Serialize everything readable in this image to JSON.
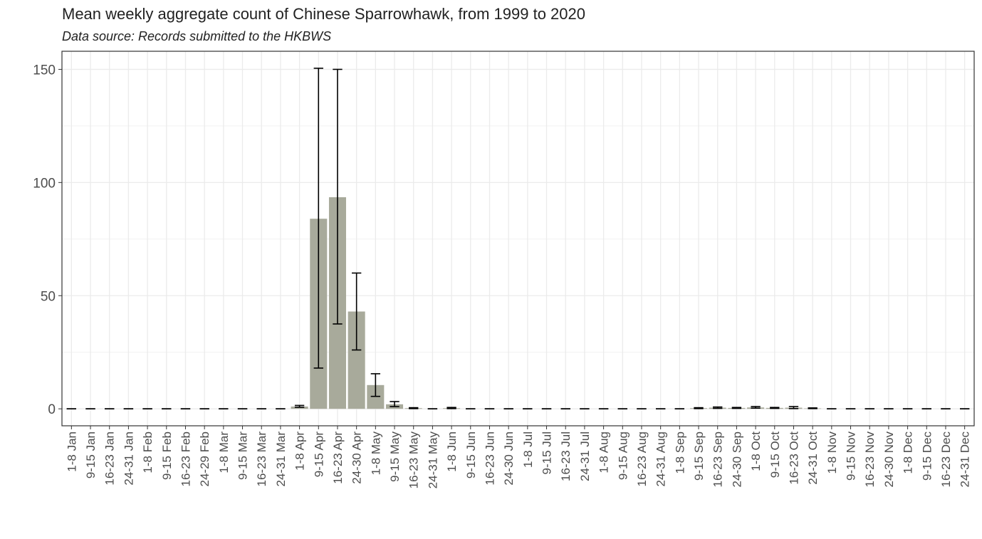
{
  "chart_data": {
    "type": "bar",
    "title": "Mean weekly aggregate count of Chinese Sparrowhawk, from 1999 to 2020",
    "subtitle": "Data source: Records submitted to the HKBWS",
    "categories": [
      "1-8 Jan",
      "9-15 Jan",
      "16-23 Jan",
      "24-31 Jan",
      "1-8 Feb",
      "9-15 Feb",
      "16-23 Feb",
      "24-29 Feb",
      "1-8 Mar",
      "9-15 Mar",
      "16-23 Mar",
      "24-31 Mar",
      "1-8 Apr",
      "9-15 Apr",
      "16-23 Apr",
      "24-30 Apr",
      "1-8 May",
      "9-15 May",
      "16-23 May",
      "24-31 May",
      "1-8 Jun",
      "9-15 Jun",
      "16-23 Jun",
      "24-30 Jun",
      "1-8 Jul",
      "9-15 Jul",
      "16-23 Jul",
      "24-31 Jul",
      "1-8 Aug",
      "9-15 Aug",
      "16-23 Aug",
      "24-31 Aug",
      "1-8 Sep",
      "9-15 Sep",
      "16-23 Sep",
      "24-30 Sep",
      "1-8 Oct",
      "9-15 Oct",
      "16-23 Oct",
      "24-31 Oct",
      "1-8 Nov",
      "9-15 Nov",
      "16-23 Nov",
      "24-30 Nov",
      "1-8 Dec",
      "9-15 Dec",
      "16-23 Dec",
      "24-31 Dec"
    ],
    "values": [
      0,
      0,
      0,
      0,
      0,
      0,
      0,
      0,
      0,
      0,
      0,
      0,
      1,
      84,
      93.5,
      43,
      10.5,
      2,
      0.3,
      0,
      0.3,
      0,
      0,
      0,
      0,
      0,
      0,
      0,
      0,
      0,
      0,
      0,
      0,
      0.3,
      0.5,
      0.4,
      0.6,
      0.4,
      0.5,
      0.2,
      0,
      0,
      0,
      0,
      0,
      0,
      0,
      0
    ],
    "error_low": [
      0,
      0,
      0,
      0,
      0,
      0,
      0,
      0,
      0,
      0,
      0,
      0,
      0.7,
      18,
      37.5,
      26,
      5.5,
      1,
      0.1,
      0,
      0.1,
      0,
      0,
      0,
      0,
      0,
      0,
      0,
      0,
      0,
      0,
      0,
      0,
      0.1,
      0.2,
      0.2,
      0.3,
      0.2,
      0.1,
      0.1,
      0,
      0,
      0,
      0,
      0,
      0,
      0,
      0
    ],
    "error_high": [
      0,
      0,
      0,
      0,
      0,
      0,
      0,
      0,
      0,
      0,
      0,
      0,
      1.5,
      150.5,
      150,
      60,
      15.5,
      3.2,
      0.5,
      0,
      0.6,
      0,
      0,
      0,
      0,
      0,
      0,
      0,
      0,
      0,
      0,
      0,
      0,
      0.5,
      0.8,
      0.6,
      1,
      0.6,
      1,
      0.4,
      0,
      0,
      0,
      0,
      0,
      0,
      0,
      0
    ],
    "color": "#a8aa9b",
    "ylim": [
      -7.5,
      158
    ],
    "yticks": [
      0,
      50,
      100,
      150
    ],
    "y_minor_gridlines": [
      25,
      75,
      125
    ],
    "grid": true
  }
}
